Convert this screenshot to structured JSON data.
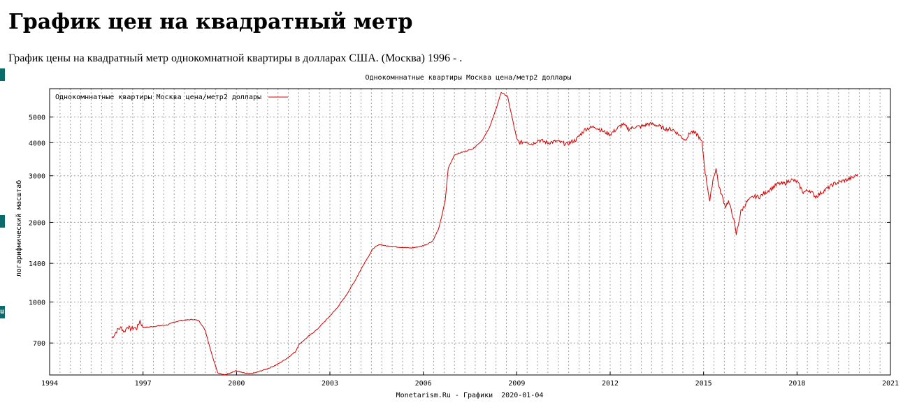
{
  "page": {
    "title": "График цен на квадратный метр",
    "subtitle": "График цены на квадратный метр однокомнатной квартиры в долларах США. (Москва) 1996 - ."
  },
  "side_markers": [
    "",
    "",
    "u"
  ],
  "colors": {
    "series": "#d40000",
    "grid": "#a0a0a0",
    "side_marker": "#0b6a6a"
  },
  "chart_data": {
    "type": "line",
    "title": "Однокомннатные квартиры Москва цена/метр2 доллары",
    "ylabel": "логарифмический масштаб",
    "footer": "Monetarism.Ru - Графики  2020-01-04",
    "y_scale": "log",
    "xlim": [
      1994,
      2021
    ],
    "ylim": [
      530,
      6400
    ],
    "grid": true,
    "legend_placement": "top-left",
    "x_ticks": [
      "1994",
      "1997",
      "2000",
      "2003",
      "2006",
      "2009",
      "2012",
      "2015",
      "2018",
      "2021"
    ],
    "y_ticks": [
      "700",
      "1000",
      "1400",
      "2000",
      "3000",
      "4000",
      "5000"
    ],
    "series": [
      {
        "name": "Однокомннатные квартиры Москва цена/метр2 доллары",
        "x": [
          1996.0,
          1996.1,
          1996.2,
          1996.3,
          1996.4,
          1996.5,
          1996.6,
          1996.7,
          1996.8,
          1996.9,
          1997.0,
          1997.2,
          1997.4,
          1997.6,
          1997.8,
          1998.0,
          1998.2,
          1998.4,
          1998.6,
          1998.8,
          1999.0,
          1999.2,
          1999.4,
          1999.6,
          1999.8,
          2000.0,
          2000.2,
          2000.4,
          2000.6,
          2000.8,
          2001.0,
          2001.3,
          2001.6,
          2001.9,
          2002.0,
          2002.3,
          2002.6,
          2002.9,
          2003.2,
          2003.5,
          2003.8,
          2004.1,
          2004.4,
          2004.6,
          2004.8,
          2005.0,
          2005.3,
          2005.6,
          2005.9,
          2006.1,
          2006.3,
          2006.5,
          2006.7,
          2006.8,
          2007.0,
          2007.3,
          2007.6,
          2007.9,
          2008.1,
          2008.3,
          2008.5,
          2008.7,
          2008.85,
          2009.0,
          2009.1,
          2009.3,
          2009.5,
          2009.7,
          2010.0,
          2010.3,
          2010.6,
          2010.9,
          2011.2,
          2011.5,
          2011.8,
          2012.0,
          2012.2,
          2012.4,
          2012.6,
          2012.8,
          2013.0,
          2013.2,
          2013.4,
          2013.6,
          2013.8,
          2014.0,
          2014.2,
          2014.4,
          2014.6,
          2014.8,
          2014.95,
          2015.05,
          2015.2,
          2015.3,
          2015.4,
          2015.5,
          2015.6,
          2015.7,
          2015.8,
          2015.95,
          2016.05,
          2016.2,
          2016.4,
          2016.6,
          2016.8,
          2017.0,
          2017.2,
          2017.4,
          2017.6,
          2017.8,
          2018.0,
          2018.2,
          2018.4,
          2018.6,
          2018.8,
          2019.0,
          2019.2,
          2019.4,
          2019.6,
          2019.8,
          2019.95
        ],
        "y": [
          730,
          760,
          790,
          800,
          770,
          810,
          790,
          800,
          795,
          850,
          800,
          805,
          810,
          815,
          820,
          840,
          850,
          855,
          860,
          850,
          780,
          640,
          540,
          530,
          540,
          550,
          540,
          535,
          540,
          550,
          560,
          580,
          610,
          650,
          690,
          740,
          790,
          860,
          940,
          1050,
          1200,
          1400,
          1600,
          1650,
          1630,
          1620,
          1610,
          1600,
          1620,
          1650,
          1700,
          1900,
          2400,
          3200,
          3600,
          3700,
          3800,
          4100,
          4500,
          5200,
          6200,
          6000,
          5000,
          4100,
          4000,
          4050,
          3950,
          4100,
          4000,
          4050,
          3950,
          4100,
          4500,
          4600,
          4400,
          4300,
          4500,
          4700,
          4500,
          4600,
          4600,
          4700,
          4700,
          4600,
          4500,
          4500,
          4300,
          4100,
          4400,
          4300,
          4000,
          3100,
          2400,
          2900,
          3200,
          2700,
          2500,
          2300,
          2400,
          2100,
          1800,
          2200,
          2400,
          2500,
          2500,
          2600,
          2700,
          2800,
          2800,
          2900,
          2850,
          2600,
          2650,
          2500,
          2600,
          2700,
          2800,
          2850,
          2900,
          2950,
          3050
        ]
      }
    ]
  }
}
